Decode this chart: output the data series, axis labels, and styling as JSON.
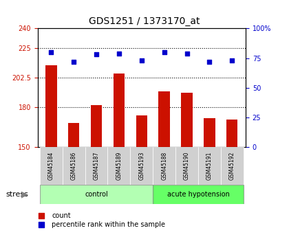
{
  "title": "GDS1251 / 1373170_at",
  "samples": [
    "GSM45184",
    "GSM45186",
    "GSM45187",
    "GSM45189",
    "GSM45193",
    "GSM45188",
    "GSM45190",
    "GSM45191",
    "GSM45192"
  ],
  "counts": [
    212,
    168,
    182,
    206,
    174,
    192,
    191,
    172,
    171
  ],
  "percentiles": [
    80,
    72,
    78,
    79,
    73,
    80,
    79,
    72,
    73
  ],
  "groups": [
    "control",
    "control",
    "control",
    "control",
    "control",
    "acute hypotension",
    "acute hypotension",
    "acute hypotension",
    "acute hypotension"
  ],
  "group_colors": {
    "control": "#b3ffb3",
    "acute hypotension": "#66ff66"
  },
  "bar_color": "#cc1100",
  "dot_color": "#0000cc",
  "ylim_left": [
    150,
    240
  ],
  "ylim_right": [
    0,
    100
  ],
  "yticks_left": [
    150,
    180,
    202.5,
    225,
    240
  ],
  "ytick_labels_left": [
    "150",
    "180",
    "202.5",
    "225",
    "240"
  ],
  "yticks_right": [
    0,
    25,
    50,
    75,
    100
  ],
  "ytick_labels_right": [
    "0",
    "25",
    "50",
    "75",
    "100%"
  ],
  "hlines": [
    180,
    202.5,
    225
  ],
  "legend_count_label": "count",
  "legend_pct_label": "percentile rank within the sample",
  "stress_label": "stress",
  "background_color": "#ffffff",
  "plot_bg_color": "#f0f0f0",
  "label_area_color": "#d0d0d0"
}
